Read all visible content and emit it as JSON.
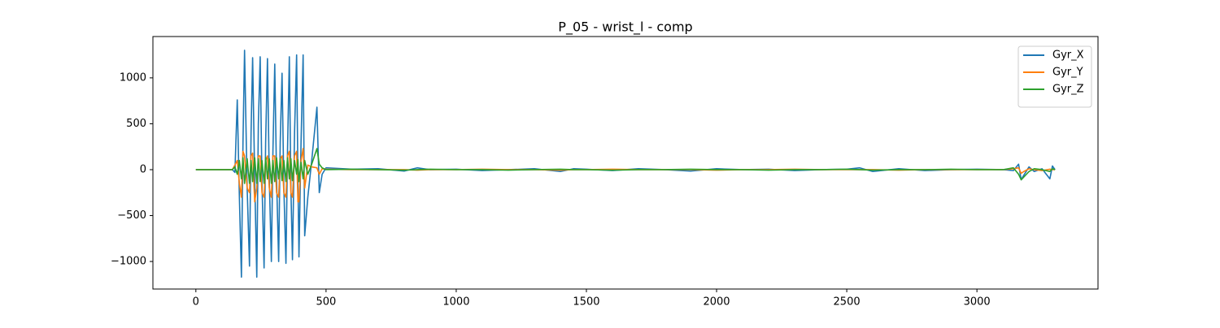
{
  "chart_data": {
    "type": "line",
    "title": "P_05 - wrist_l - comp",
    "x": [
      0,
      100,
      140,
      150,
      159,
      167,
      175,
      181,
      187,
      197,
      206,
      212,
      218,
      226,
      234,
      240,
      247,
      254,
      262,
      268,
      275,
      282,
      290,
      296,
      303,
      310,
      318,
      324,
      331,
      338,
      346,
      352,
      359,
      365,
      371,
      379,
      387,
      392,
      396,
      404,
      412,
      418,
      430,
      445,
      465,
      474,
      485,
      500,
      600,
      700,
      800,
      850,
      900,
      1000,
      1100,
      1200,
      1300,
      1400,
      1450,
      1500,
      1600,
      1700,
      1800,
      1900,
      2000,
      2100,
      2200,
      2300,
      2400,
      2500,
      2550,
      2600,
      2700,
      2800,
      2900,
      3000,
      3100,
      3140,
      3160,
      3170,
      3180,
      3200,
      3220,
      3250,
      3280,
      3290,
      3300
    ],
    "series": [
      {
        "name": "Gyr_X",
        "color": "#1f77b4",
        "values": [
          0,
          0,
          0,
          -30,
          760,
          -280,
          -1170,
          300,
          1300,
          -200,
          -1050,
          400,
          1220,
          -100,
          -1170,
          500,
          1230,
          -150,
          -1070,
          300,
          1210,
          -100,
          -1000,
          200,
          1150,
          -100,
          -1000,
          300,
          1050,
          -200,
          -1020,
          200,
          1230,
          -200,
          -980,
          400,
          1250,
          -100,
          -950,
          300,
          1250,
          -720,
          -300,
          100,
          680,
          -250,
          -50,
          20,
          5,
          10,
          -15,
          20,
          0,
          5,
          -10,
          0,
          10,
          -20,
          10,
          5,
          -10,
          10,
          0,
          -15,
          10,
          0,
          5,
          -10,
          0,
          5,
          20,
          -20,
          10,
          -10,
          0,
          5,
          0,
          -10,
          60,
          -110,
          -60,
          30,
          -20,
          10,
          -100,
          40,
          0
        ]
      },
      {
        "name": "Gyr_Y",
        "color": "#ff7f0e",
        "values": [
          0,
          0,
          0,
          50,
          100,
          -150,
          -300,
          200,
          150,
          -200,
          -250,
          150,
          180,
          -350,
          -200,
          150,
          150,
          -250,
          -300,
          100,
          150,
          -200,
          -300,
          150,
          150,
          -250,
          -300,
          120,
          150,
          -250,
          -300,
          150,
          200,
          -250,
          -300,
          150,
          200,
          -350,
          -350,
          100,
          230,
          -200,
          50,
          30,
          20,
          -50,
          10,
          5,
          0,
          0,
          0,
          -5,
          0,
          0,
          5,
          0,
          0,
          -5,
          0,
          0,
          5,
          0,
          0,
          0,
          -5,
          0,
          0,
          5,
          0,
          0,
          0,
          0,
          -5,
          0,
          0,
          0,
          0,
          10,
          20,
          -40,
          -20,
          10,
          0,
          -10,
          5,
          0,
          0
        ]
      },
      {
        "name": "Gyr_Z",
        "color": "#2ca02c",
        "values": [
          0,
          0,
          0,
          30,
          -50,
          100,
          -100,
          130,
          -150,
          120,
          -150,
          100,
          -130,
          130,
          -150,
          120,
          -130,
          100,
          -150,
          130,
          -100,
          120,
          -150,
          100,
          -130,
          130,
          -100,
          120,
          -120,
          100,
          -130,
          130,
          -100,
          120,
          -120,
          100,
          -50,
          110,
          -130,
          80,
          -100,
          100,
          -50,
          60,
          230,
          60,
          20,
          0,
          5,
          0,
          -5,
          0,
          5,
          0,
          0,
          -5,
          0,
          5,
          0,
          0,
          -5,
          0,
          0,
          5,
          0,
          0,
          -5,
          0,
          0,
          5,
          0,
          -5,
          0,
          0,
          5,
          0,
          0,
          20,
          -50,
          -110,
          -80,
          -20,
          10,
          0,
          -20,
          10,
          0
        ]
      }
    ],
    "xlim": [
      -165,
      3465
    ],
    "ylim": [
      -1300,
      1450
    ],
    "xticks": [
      0,
      500,
      1000,
      1500,
      2000,
      2500,
      3000
    ],
    "yticks": [
      {
        "value": -1000,
        "label": "−1000"
      },
      {
        "value": -500,
        "label": "−500"
      },
      0,
      500,
      1000
    ],
    "legend": "upper right"
  }
}
